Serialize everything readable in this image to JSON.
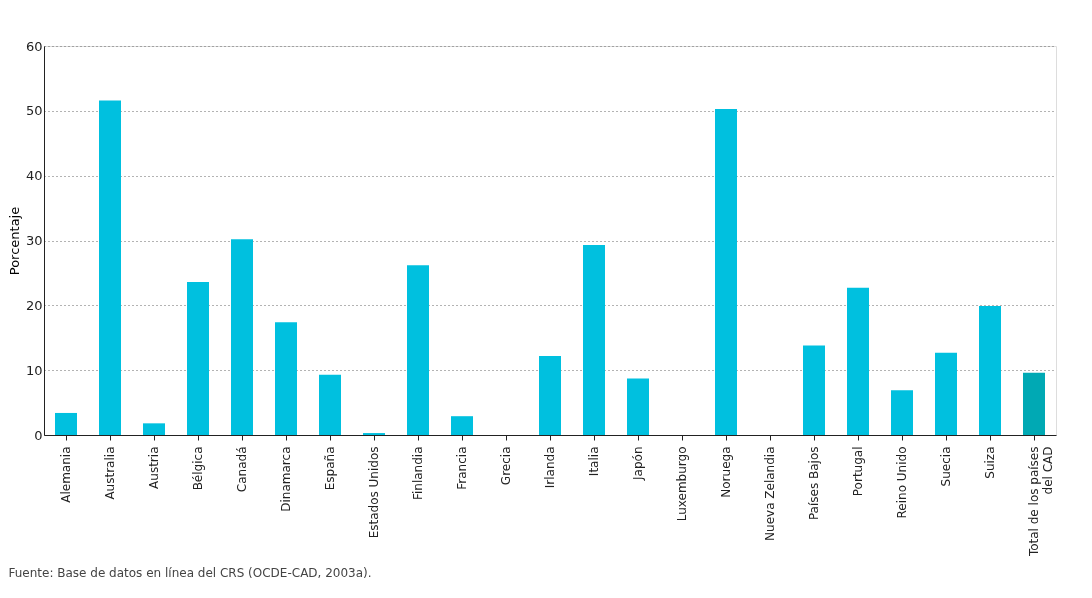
{
  "chart_data": {
    "type": "bar",
    "categories": [
      "Alemania",
      "Australia",
      "Austria",
      "Bélgica",
      "Canadá",
      "Dinamarca",
      "España",
      "Estados Unidos",
      "Finlandia",
      "Francia",
      "Grecia",
      "Irlanda",
      "Italia",
      "Japón",
      "Luxemburgo",
      "Noruega",
      "Nueva Zelandia",
      "Países Bajos",
      "Portugal",
      "Reino Unido",
      "Suecia",
      "Suiza",
      "Total de los países del CAD"
    ],
    "values": [
      3.4,
      51.6,
      1.8,
      23.6,
      30.2,
      17.4,
      9.3,
      0.3,
      26.2,
      2.9,
      0,
      12.2,
      29.3,
      8.7,
      0,
      50.3,
      0,
      13.8,
      22.7,
      6.9,
      12.7,
      19.9,
      9.6
    ],
    "colors": [
      "#00c0df",
      "#00c0df",
      "#00c0df",
      "#00c0df",
      "#00c0df",
      "#00c0df",
      "#00c0df",
      "#00c0df",
      "#00c0df",
      "#00c0df",
      "#00c0df",
      "#00c0df",
      "#00c0df",
      "#00c0df",
      "#00c0df",
      "#00c0df",
      "#00c0df",
      "#00c0df",
      "#00c0df",
      "#00c0df",
      "#00c0df",
      "#00c0df",
      "#00a9b4"
    ],
    "ylabel": "Porcentaje",
    "ylim": [
      0,
      60
    ],
    "yticks": [
      0,
      10,
      20,
      30,
      40,
      50,
      60
    ],
    "grid": "y",
    "annotations": [
      "Fuente: Base de datos en línea del CRS (OCDE-CAD, 2003a)."
    ]
  }
}
